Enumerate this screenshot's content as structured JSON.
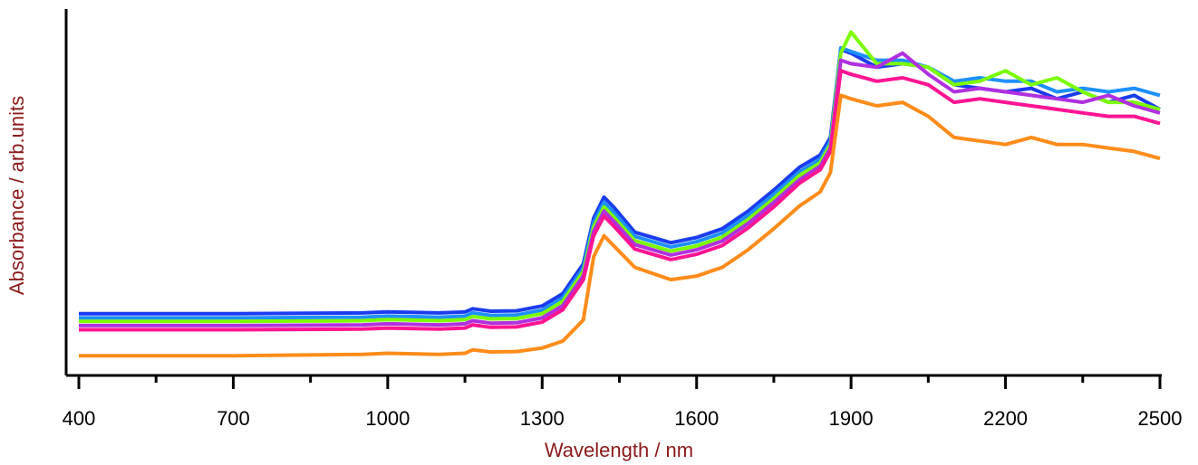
{
  "chart_data": {
    "type": "line",
    "title": "",
    "xlabel": "Wavelength / nm",
    "ylabel": "Absorbance / arb.units",
    "xlim": [
      400,
      2500
    ],
    "ylim": [
      0,
      1
    ],
    "x_ticks": [
      400,
      700,
      1000,
      1300,
      1600,
      1900,
      2200,
      2500
    ],
    "x_tick_labels": [
      "400",
      "700",
      "1000",
      "1300",
      "1600",
      "1900",
      "2200",
      "2500"
    ],
    "x_minor_ticks": [
      550,
      850,
      1150,
      1450,
      1750,
      2050,
      2350
    ],
    "y_ticks_shown": false,
    "legend": "none",
    "grid": false,
    "label_color": "#8b1a1a",
    "x": [
      400,
      700,
      950,
      1000,
      1100,
      1150,
      1165,
      1200,
      1250,
      1300,
      1340,
      1380,
      1400,
      1420,
      1440,
      1480,
      1550,
      1600,
      1650,
      1700,
      1750,
      1800,
      1840,
      1860,
      1880,
      1900,
      1950,
      2000,
      2050,
      2100,
      2150,
      2200,
      2250,
      2300,
      2350,
      2400,
      2450,
      2500
    ],
    "series": [
      {
        "color": "#1a3cf0",
        "values": [
          0.158,
          0.158,
          0.16,
          0.163,
          0.16,
          0.163,
          0.172,
          0.165,
          0.166,
          0.18,
          0.215,
          0.3,
          0.43,
          0.49,
          0.46,
          0.39,
          0.36,
          0.375,
          0.4,
          0.45,
          0.51,
          0.575,
          0.61,
          0.66,
          0.91,
          0.9,
          0.86,
          0.87,
          0.86,
          0.81,
          0.8,
          0.79,
          0.8,
          0.77,
          0.79,
          0.76,
          0.78,
          0.74
        ]
      },
      {
        "color": "#1e90ff",
        "values": [
          0.146,
          0.146,
          0.148,
          0.151,
          0.148,
          0.151,
          0.16,
          0.153,
          0.154,
          0.168,
          0.203,
          0.288,
          0.418,
          0.475,
          0.445,
          0.378,
          0.348,
          0.363,
          0.388,
          0.438,
          0.498,
          0.562,
          0.598,
          0.65,
          0.915,
          0.905,
          0.88,
          0.88,
          0.86,
          0.82,
          0.83,
          0.82,
          0.82,
          0.79,
          0.8,
          0.79,
          0.8,
          0.78
        ]
      },
      {
        "color": "#7cfc00",
        "values": [
          0.136,
          0.136,
          0.138,
          0.141,
          0.138,
          0.141,
          0.15,
          0.143,
          0.144,
          0.158,
          0.193,
          0.278,
          0.405,
          0.462,
          0.432,
          0.366,
          0.336,
          0.351,
          0.376,
          0.426,
          0.486,
          0.552,
          0.588,
          0.64,
          0.9,
          0.96,
          0.87,
          0.87,
          0.86,
          0.81,
          0.82,
          0.85,
          0.81,
          0.83,
          0.79,
          0.76,
          0.76,
          0.74
        ]
      },
      {
        "color": "#b030e0",
        "values": [
          0.124,
          0.124,
          0.126,
          0.129,
          0.126,
          0.129,
          0.138,
          0.131,
          0.132,
          0.146,
          0.181,
          0.266,
          0.392,
          0.45,
          0.42,
          0.355,
          0.325,
          0.34,
          0.365,
          0.415,
          0.475,
          0.54,
          0.578,
          0.63,
          0.88,
          0.87,
          0.86,
          0.9,
          0.84,
          0.79,
          0.8,
          0.79,
          0.78,
          0.77,
          0.76,
          0.78,
          0.75,
          0.73
        ]
      },
      {
        "color": "#ff1493",
        "values": [
          0.112,
          0.112,
          0.114,
          0.117,
          0.114,
          0.117,
          0.126,
          0.119,
          0.12,
          0.134,
          0.169,
          0.254,
          0.38,
          0.436,
          0.406,
          0.342,
          0.312,
          0.327,
          0.352,
          0.402,
          0.462,
          0.53,
          0.568,
          0.62,
          0.85,
          0.84,
          0.82,
          0.83,
          0.81,
          0.76,
          0.77,
          0.76,
          0.75,
          0.74,
          0.73,
          0.72,
          0.72,
          0.7
        ]
      },
      {
        "color": "#ff8c1a",
        "values": [
          0.038,
          0.038,
          0.042,
          0.045,
          0.042,
          0.045,
          0.055,
          0.049,
          0.05,
          0.06,
          0.08,
          0.14,
          0.32,
          0.38,
          0.35,
          0.29,
          0.255,
          0.265,
          0.29,
          0.34,
          0.4,
          0.465,
          0.505,
          0.56,
          0.78,
          0.77,
          0.75,
          0.76,
          0.72,
          0.66,
          0.65,
          0.64,
          0.66,
          0.64,
          0.64,
          0.63,
          0.62,
          0.6
        ]
      }
    ]
  }
}
